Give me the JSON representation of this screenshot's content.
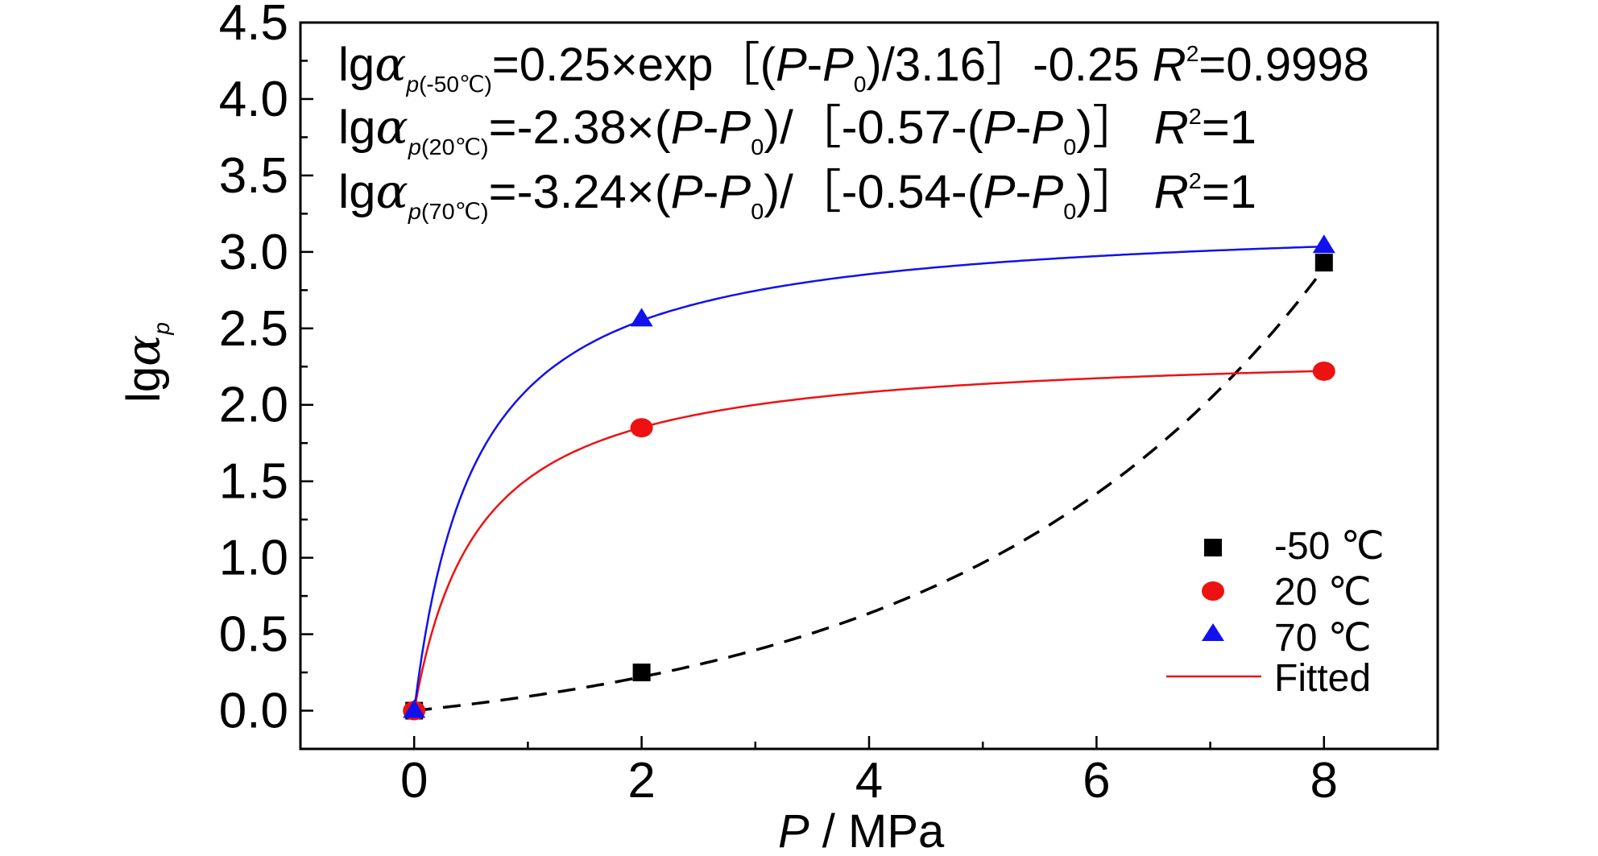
{
  "chart_data": {
    "type": "scatter",
    "xlabel": "P / MPa",
    "ylabel": "lgαp",
    "xlim": [
      -1,
      9
    ],
    "ylim": [
      -0.25,
      4.5
    ],
    "xticks": [
      "0",
      "2",
      "4",
      "6",
      "8"
    ],
    "yticks": [
      "0.0",
      "0.5",
      "1.0",
      "1.5",
      "2.0",
      "2.5",
      "3.0",
      "3.5",
      "4.0",
      "4.5"
    ],
    "grid": false,
    "legend_position": "bottom-right",
    "series": [
      {
        "name": "-50 ℃",
        "marker": "square",
        "color": "#000000",
        "x": [
          0,
          2,
          8
        ],
        "y": [
          0.0,
          0.25,
          2.93
        ]
      },
      {
        "name": "20 ℃",
        "marker": "circle",
        "color": "#ee1111",
        "x": [
          0,
          2,
          8
        ],
        "y": [
          0.0,
          1.85,
          2.22
        ]
      },
      {
        "name": "70 ℃",
        "marker": "triangle",
        "color": "#1111ee",
        "x": [
          0,
          2,
          8
        ],
        "y": [
          0.0,
          2.56,
          3.04
        ]
      }
    ],
    "fitted_label": "Fitted",
    "fits": [
      {
        "series": "-50 ℃",
        "form": "exp",
        "a": 0.25,
        "b": 3.16,
        "c": -0.25,
        "color": "#000000",
        "dashed": true
      },
      {
        "series": "20 ℃",
        "form": "rational",
        "a": -2.38,
        "b": -0.57,
        "color": "#ee1111",
        "dashed": false
      },
      {
        "series": "70 ℃",
        "form": "rational",
        "a": -3.24,
        "b": -0.54,
        "color": "#1111ee",
        "dashed": false
      }
    ],
    "annotations": [
      {
        "lhs": "lg",
        "sym": "α",
        "sub_p": "p",
        "sub_rest": "(-50℃)",
        "pre": "=0.25×exp［(",
        "P1": "P",
        "dash": "-",
        "P2": "P",
        "zero": "0",
        "post": ")/3.16］-0.25",
        "R": "R",
        "sup": "2",
        "rval": "=0.9998"
      },
      {
        "lhs": "lg",
        "sym": "α",
        "sub_p": "p",
        "sub_rest": "(20℃)",
        "pre": "=-2.38×(",
        "P1": "P",
        "dash": "-",
        "P2": "P",
        "zero": "0",
        "mid": ")/［-0.57-(",
        "P3": "P",
        "dash2": "-",
        "P4": "P",
        "zero2": "0",
        "post": ")］",
        "R": "R",
        "sup": "2",
        "rval": "=1"
      },
      {
        "lhs": "lg",
        "sym": "α",
        "sub_p": "p",
        "sub_rest": "(70℃)",
        "pre": "=-3.24×(",
        "P1": "P",
        "dash": "-",
        "P2": "P",
        "zero": "0",
        "mid": ")/［-0.54-(",
        "P3": "P",
        "dash2": "-",
        "P4": "P",
        "zero2": "0",
        "post": ")］",
        "R": "R",
        "sup": "2",
        "rval": "=1"
      }
    ]
  },
  "axis_titles": {
    "x_italic": "P",
    "x_rest": " / MPa",
    "y_lg": "lg",
    "y_alpha": "α",
    "y_sub": "p"
  }
}
